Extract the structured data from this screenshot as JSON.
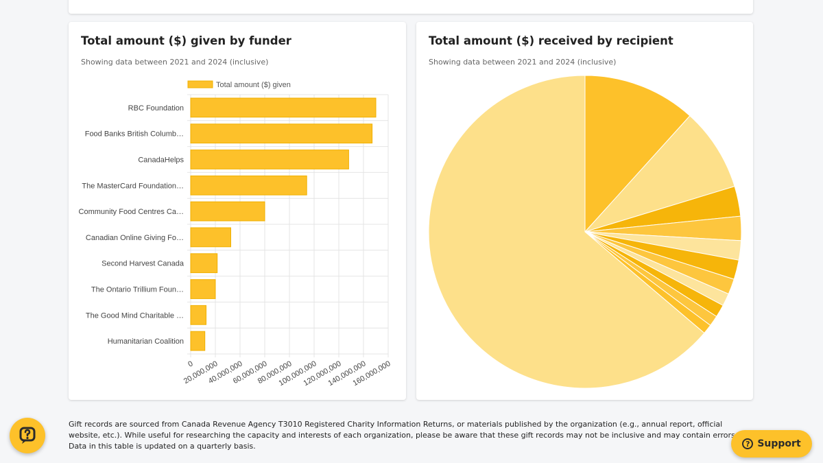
{
  "cards": {
    "funder": {
      "title": "Total amount ($) given by funder",
      "subtitle": "Showing data between 2021 and 2024 (inclusive)"
    },
    "recipient": {
      "title": "Total amount ($) received by recipient",
      "subtitle": "Showing data between 2021 and 2024 (inclusive)"
    }
  },
  "chart_data": [
    {
      "type": "bar",
      "orientation": "horizontal",
      "title": "Total amount ($) given by funder",
      "legend": "Total amount ($) given",
      "legend_position": "top",
      "categories": [
        "RBC Foundation",
        "Food Banks British Columb…",
        "CanadaHelps",
        "The MasterCard Foundation…",
        "Community Food Centres Ca…",
        "Canadian Online Giving Fo…",
        "Second Harvest Canada",
        "The Ontario Trillium Foun…",
        "The Good Mind Charitable …",
        "Humanitarian Coalition"
      ],
      "values": [
        150000000,
        147000000,
        128000000,
        94000000,
        60000000,
        32500000,
        21500000,
        20000000,
        12500000,
        11500000
      ],
      "xlim": [
        0,
        160000000
      ],
      "x_ticks": [
        "0",
        "20,000,000",
        "40,000,000",
        "60,000,000",
        "80,000,000",
        "100,000,000",
        "120,000,000",
        "140,000,000",
        "160,000,000"
      ],
      "color": "#fdc12a",
      "grid": true
    },
    {
      "type": "pie",
      "title": "Total amount ($) received by recipient",
      "values": [
        11.7,
        8.6,
        3.1,
        2.5,
        2.0,
        2.0,
        1.6,
        1.3,
        1.3,
        1.1,
        1.0,
        63.8
      ],
      "colors": [
        "#fdc12a",
        "#fde08a",
        "#f6b50a",
        "#fdc63e",
        "#fde49c",
        "#f6b50a",
        "#fdc63e",
        "#fde49c",
        "#f6b50a",
        "#fdc63e",
        "#fdc12a",
        "#fde08a"
      ]
    }
  ],
  "footnote": "Gift records are sourced from Canada Revenue Agency T3010 Registered Charity Information Returns, or materials published by the organization (e.g., annual report, official website, etc.). While useful for researching the capacity and interests of each organization, please be aware that these gift records may not be inclusive and may contain errors. Data in this table is updated on a quarterly basis.",
  "support": {
    "label": "Support",
    "icon": "question-circle-icon"
  },
  "help_fab": {
    "icon": "chat-help-icon"
  }
}
